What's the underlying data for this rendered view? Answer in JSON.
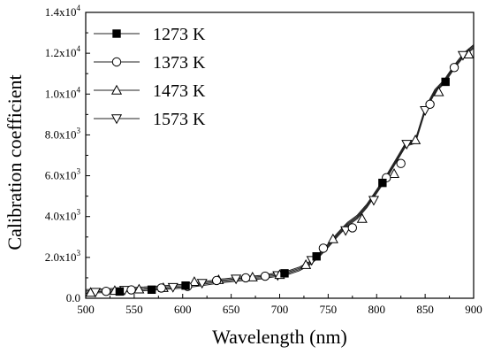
{
  "chart_data": {
    "type": "line",
    "title": "",
    "xlabel": "Wavelength (nm)",
    "ylabel": "Calibration coefficient",
    "xlim": [
      500,
      900
    ],
    "ylim": [
      0,
      14000
    ],
    "x_ticks": [
      500,
      550,
      600,
      650,
      700,
      750,
      800,
      850,
      900
    ],
    "x_tick_labels": [
      "500",
      "550",
      "600",
      "650",
      "700",
      "750",
      "800",
      "850",
      "900"
    ],
    "y_ticks": [
      0,
      2000,
      4000,
      6000,
      8000,
      10000,
      12000,
      14000
    ],
    "y_tick_labels": [
      {
        "base": "0.0",
        "exp": ""
      },
      {
        "base": "2.0x10",
        "exp": "3"
      },
      {
        "base": "4.0x10",
        "exp": "3"
      },
      {
        "base": "6.0x10",
        "exp": "3"
      },
      {
        "base": "8.0x10",
        "exp": "3"
      },
      {
        "base": "1.0x10",
        "exp": "4"
      },
      {
        "base": "1.2x10",
        "exp": "4"
      },
      {
        "base": "1.4x10",
        "exp": "4"
      }
    ],
    "grid": false,
    "legend_position": "top-left",
    "curve": [
      [
        500,
        300
      ],
      [
        520,
        340
      ],
      [
        540,
        390
      ],
      [
        560,
        430
      ],
      [
        580,
        490
      ],
      [
        600,
        560
      ],
      [
        620,
        680
      ],
      [
        640,
        820
      ],
      [
        660,
        920
      ],
      [
        680,
        1000
      ],
      [
        700,
        1150
      ],
      [
        710,
        1240
      ],
      [
        720,
        1400
      ],
      [
        730,
        1650
      ],
      [
        740,
        2050
      ],
      [
        750,
        2550
      ],
      [
        760,
        3100
      ],
      [
        770,
        3600
      ],
      [
        780,
        3950
      ],
      [
        790,
        4500
      ],
      [
        800,
        5200
      ],
      [
        810,
        5900
      ],
      [
        820,
        6700
      ],
      [
        830,
        7500
      ],
      [
        840,
        7650
      ],
      [
        850,
        9200
      ],
      [
        860,
        10100
      ],
      [
        870,
        10600
      ],
      [
        880,
        11300
      ],
      [
        890,
        11900
      ],
      [
        900,
        12300
      ]
    ],
    "series": [
      {
        "name": "1273 K",
        "marker": "square-filled",
        "points": [
          [
            535,
            330
          ],
          [
            568,
            420
          ],
          [
            603,
            620
          ],
          [
            705,
            1220
          ],
          [
            738,
            2050
          ],
          [
            806,
            5650
          ],
          [
            871,
            10600
          ]
        ]
      },
      {
        "name": "1373 K",
        "marker": "circle-open",
        "points": [
          [
            521,
            340
          ],
          [
            547,
            410
          ],
          [
            578,
            500
          ],
          [
            605,
            580
          ],
          [
            635,
            870
          ],
          [
            665,
            1000
          ],
          [
            685,
            1080
          ],
          [
            745,
            2450
          ],
          [
            775,
            3450
          ],
          [
            810,
            5900
          ],
          [
            825,
            6600
          ],
          [
            855,
            9500
          ],
          [
            880,
            11300
          ]
        ]
      },
      {
        "name": "1473 K",
        "marker": "triangle-up-open",
        "points": [
          [
            505,
            280
          ],
          [
            530,
            370
          ],
          [
            555,
            440
          ],
          [
            580,
            510
          ],
          [
            612,
            810
          ],
          [
            637,
            900
          ],
          [
            672,
            1030
          ],
          [
            700,
            1150
          ],
          [
            727,
            1640
          ],
          [
            755,
            2900
          ],
          [
            785,
            3900
          ],
          [
            818,
            6100
          ],
          [
            840,
            7750
          ],
          [
            864,
            10100
          ],
          [
            895,
            11950
          ]
        ]
      },
      {
        "name": "1573 K",
        "marker": "triangle-down-open",
        "points": [
          [
            510,
            300
          ],
          [
            540,
            400
          ],
          [
            590,
            540
          ],
          [
            620,
            740
          ],
          [
            655,
            950
          ],
          [
            698,
            1120
          ],
          [
            733,
            1860
          ],
          [
            768,
            3320
          ],
          [
            797,
            4800
          ],
          [
            831,
            7550
          ],
          [
            850,
            9200
          ],
          [
            889,
            11900
          ]
        ]
      }
    ]
  }
}
